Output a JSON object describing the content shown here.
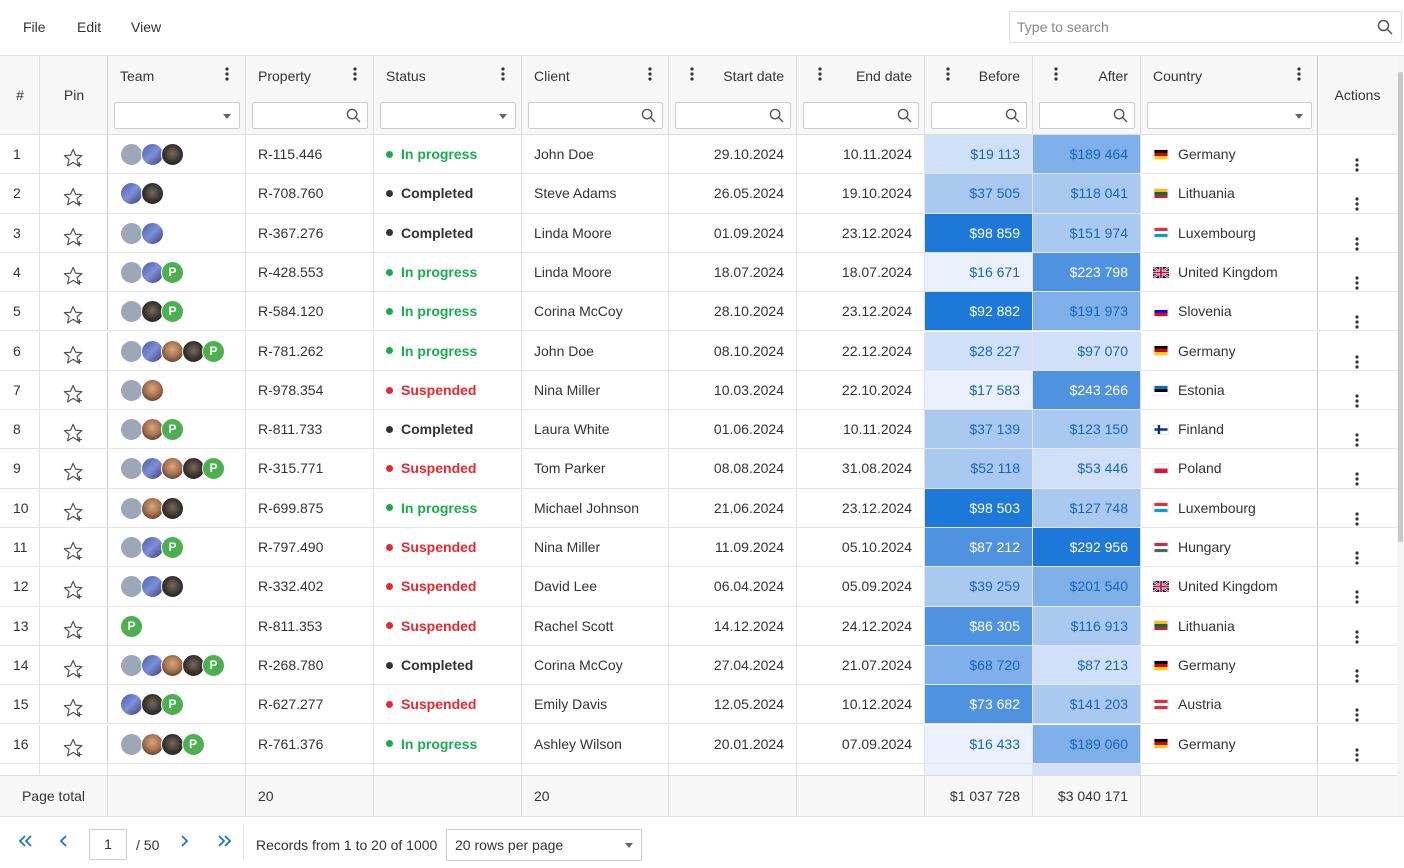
{
  "menu": {
    "file": "File",
    "edit": "Edit",
    "view": "View"
  },
  "search": {
    "placeholder": "Type to search"
  },
  "columns": {
    "index": "#",
    "pin": "Pin",
    "team": "Team",
    "property": "Property",
    "status": "Status",
    "client": "Client",
    "start": "Start date",
    "end": "End date",
    "before": "Before",
    "after": "After",
    "country": "Country",
    "actions": "Actions"
  },
  "colors": {
    "in_progress": "#1aab4b",
    "completed": "#333333",
    "suspended": "#e8272f",
    "heat_levels": [
      "#eaf1fc",
      "#cfe0f8",
      "#a9c9f0",
      "#7fb0ea",
      "#4f93e0",
      "#1e78da"
    ]
  },
  "rows": [
    {
      "n": "1",
      "team": [
        "a1",
        "a2",
        "a5"
      ],
      "property": "R-115.446",
      "status": "In progress",
      "client": "John Doe",
      "start": "29.10.2024",
      "end": "10.11.2024",
      "before": "$19 113",
      "before_level": 1,
      "after": "$189 464",
      "after_level": 3,
      "country": "Germany",
      "flag": "de"
    },
    {
      "n": "2",
      "team": [
        "a2",
        "a5"
      ],
      "property": "R-708.760",
      "status": "Completed",
      "client": "Steve Adams",
      "start": "26.05.2024",
      "end": "19.10.2024",
      "before": "$37 505",
      "before_level": 2,
      "after": "$118 041",
      "after_level": 2,
      "country": "Lithuania",
      "flag": "lt"
    },
    {
      "n": "3",
      "team": [
        "a1",
        "a2"
      ],
      "property": "R-367.276",
      "status": "Completed",
      "client": "Linda Moore",
      "start": "01.09.2024",
      "end": "23.12.2024",
      "before": "$98 859",
      "before_level": 5,
      "after": "$151 974",
      "after_level": 2,
      "country": "Luxembourg",
      "flag": "lu"
    },
    {
      "n": "4",
      "team": [
        "a1",
        "a2",
        "p"
      ],
      "property": "R-428.553",
      "status": "In progress",
      "client": "Linda Moore",
      "start": "18.07.2024",
      "end": "18.07.2024",
      "before": "$16 671",
      "before_level": 0,
      "after": "$223 798",
      "after_level": 4,
      "country": "United Kingdom",
      "flag": "gb"
    },
    {
      "n": "5",
      "team": [
        "a1",
        "a5",
        "p"
      ],
      "property": "R-584.120",
      "status": "In progress",
      "client": "Corina McCoy",
      "start": "28.10.2024",
      "end": "23.12.2024",
      "before": "$92 882",
      "before_level": 5,
      "after": "$191 973",
      "after_level": 3,
      "country": "Slovenia",
      "flag": "si"
    },
    {
      "n": "6",
      "team": [
        "a1",
        "a2",
        "a4",
        "a5",
        "p"
      ],
      "property": "R-781.262",
      "status": "In progress",
      "client": "John Doe",
      "start": "08.10.2024",
      "end": "22.12.2024",
      "before": "$28 227",
      "before_level": 1,
      "after": "$97 070",
      "after_level": 1,
      "country": "Germany",
      "flag": "de"
    },
    {
      "n": "7",
      "team": [
        "a1",
        "a4"
      ],
      "property": "R-978.354",
      "status": "Suspended",
      "client": "Nina Miller",
      "start": "10.03.2024",
      "end": "22.10.2024",
      "before": "$17 583",
      "before_level": 0,
      "after": "$243 266",
      "after_level": 4,
      "country": "Estonia",
      "flag": "ee"
    },
    {
      "n": "8",
      "team": [
        "a1",
        "a4",
        "p"
      ],
      "property": "R-811.733",
      "status": "Completed",
      "client": "Laura White",
      "start": "01.06.2024",
      "end": "10.11.2024",
      "before": "$37 139",
      "before_level": 2,
      "after": "$123 150",
      "after_level": 2,
      "country": "Finland",
      "flag": "fi"
    },
    {
      "n": "9",
      "team": [
        "a1",
        "a2",
        "a4",
        "a5",
        "p"
      ],
      "property": "R-315.771",
      "status": "Suspended",
      "client": "Tom Parker",
      "start": "08.08.2024",
      "end": "31.08.2024",
      "before": "$52 118",
      "before_level": 2,
      "after": "$53 446",
      "after_level": 1,
      "country": "Poland",
      "flag": "pl"
    },
    {
      "n": "10",
      "team": [
        "a1",
        "a4",
        "a5"
      ],
      "property": "R-699.875",
      "status": "In progress",
      "client": "Michael Johnson",
      "start": "21.06.2024",
      "end": "23.12.2024",
      "before": "$98 503",
      "before_level": 5,
      "after": "$127 748",
      "after_level": 2,
      "country": "Luxembourg",
      "flag": "lu"
    },
    {
      "n": "11",
      "team": [
        "a1",
        "a2",
        "p"
      ],
      "property": "R-797.490",
      "status": "Suspended",
      "client": "Nina Miller",
      "start": "11.09.2024",
      "end": "05.10.2024",
      "before": "$87 212",
      "before_level": 4,
      "after": "$292 956",
      "after_level": 5,
      "country": "Hungary",
      "flag": "hu"
    },
    {
      "n": "12",
      "team": [
        "a1",
        "a2",
        "a5"
      ],
      "property": "R-332.402",
      "status": "Suspended",
      "client": "David Lee",
      "start": "06.04.2024",
      "end": "05.09.2024",
      "before": "$39 259",
      "before_level": 2,
      "after": "$201 540",
      "after_level": 3,
      "country": "United Kingdom",
      "flag": "gb"
    },
    {
      "n": "13",
      "team": [
        "p"
      ],
      "property": "R-811.353",
      "status": "Suspended",
      "client": "Rachel Scott",
      "start": "14.12.2024",
      "end": "24.12.2024",
      "before": "$86 305",
      "before_level": 4,
      "after": "$116 913",
      "after_level": 2,
      "country": "Lithuania",
      "flag": "lt"
    },
    {
      "n": "14",
      "team": [
        "a1",
        "a2",
        "a4",
        "a5",
        "p"
      ],
      "property": "R-268.780",
      "status": "Completed",
      "client": "Corina McCoy",
      "start": "27.04.2024",
      "end": "21.07.2024",
      "before": "$68 720",
      "before_level": 3,
      "after": "$87 213",
      "after_level": 1,
      "country": "Germany",
      "flag": "de"
    },
    {
      "n": "15",
      "team": [
        "a2",
        "a5",
        "p"
      ],
      "property": "R-627.277",
      "status": "Suspended",
      "client": "Emily Davis",
      "start": "12.05.2024",
      "end": "10.12.2024",
      "before": "$73 682",
      "before_level": 4,
      "after": "$141 203",
      "after_level": 2,
      "country": "Austria",
      "flag": "at"
    },
    {
      "n": "16",
      "team": [
        "a1",
        "a4",
        "a5",
        "p"
      ],
      "property": "R-761.376",
      "status": "In progress",
      "client": "Ashley Wilson",
      "start": "20.01.2024",
      "end": "07.09.2024",
      "before": "$16 433",
      "before_level": 0,
      "after": "$189 060",
      "after_level": 3,
      "country": "Germany",
      "flag": "de"
    }
  ],
  "footer": {
    "label": "Page total",
    "property_count": "20",
    "client_count": "20",
    "before_total": "$1 037 728",
    "after_total": "$3 040 171"
  },
  "pager": {
    "page": "1",
    "of": "/ 50",
    "records": "Records from 1 to 20 of 1000",
    "per_page": "20 rows per page"
  }
}
